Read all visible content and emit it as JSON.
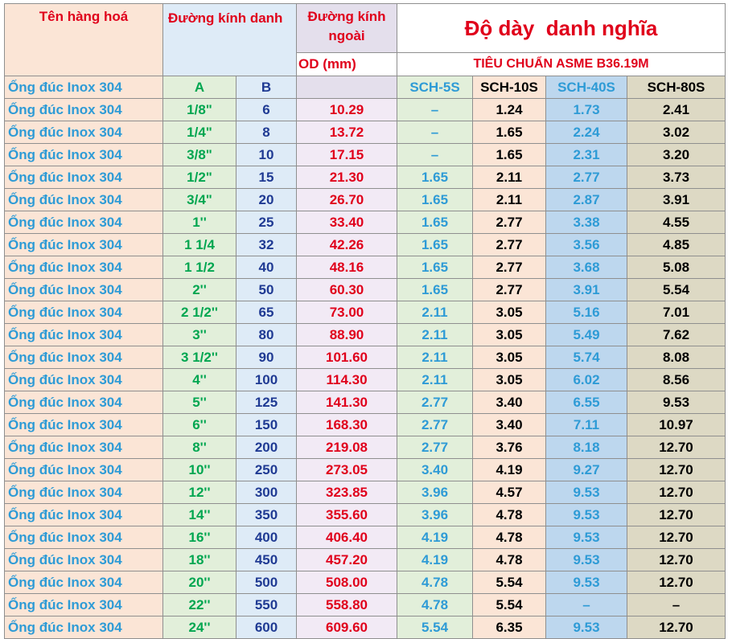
{
  "header": {
    "product_name": "Tên hàng hoá",
    "nominal_diameter": "Đường\nkính danh",
    "outer_diameter": "Đường kính\nngoài",
    "od_unit": "OD (mm)",
    "thickness_title": "Độ dày  danh nghĩa",
    "standard": "TIÊU CHUẨN ASME B36.19M"
  },
  "subheader": {
    "name": "Ống đúc Inox 304",
    "col_a": "A",
    "col_b": "B",
    "sch5": "SCH-5S",
    "sch10": "SCH-10S",
    "sch40": "SCH-40S",
    "sch80": "SCH-80S"
  },
  "rows": [
    {
      "name": "Ống đúc Inox 304",
      "a": "1/8\"",
      "b": "6",
      "od": "10.29",
      "sch5": "–",
      "sch10": "1.24",
      "sch40": "1.73",
      "sch80": "2.41"
    },
    {
      "name": "Ống đúc Inox 304",
      "a": "1/4\"",
      "b": "8",
      "od": "13.72",
      "sch5": "–",
      "sch10": "1.65",
      "sch40": "2.24",
      "sch80": "3.02"
    },
    {
      "name": "Ống đúc Inox 304",
      "a": "3/8\"",
      "b": "10",
      "od": "17.15",
      "sch5": "–",
      "sch10": "1.65",
      "sch40": "2.31",
      "sch80": "3.20"
    },
    {
      "name": "Ống đúc Inox 304",
      "a": "1/2\"",
      "b": "15",
      "od": "21.30",
      "sch5": "1.65",
      "sch10": "2.11",
      "sch40": "2.77",
      "sch80": "3.73"
    },
    {
      "name": "Ống đúc Inox 304",
      "a": "3/4\"",
      "b": "20",
      "od": "26.70",
      "sch5": "1.65",
      "sch10": "2.11",
      "sch40": "2.87",
      "sch80": "3.91"
    },
    {
      "name": "Ống đúc Inox 304",
      "a": "1''",
      "b": "25",
      "od": "33.40",
      "sch5": "1.65",
      "sch10": "2.77",
      "sch40": "3.38",
      "sch80": "4.55"
    },
    {
      "name": "Ống đúc Inox 304",
      "a": "1 1/4",
      "b": "32",
      "od": "42.26",
      "sch5": "1.65",
      "sch10": "2.77",
      "sch40": "3.56",
      "sch80": "4.85"
    },
    {
      "name": "Ống đúc Inox 304",
      "a": "1 1/2",
      "b": "40",
      "od": "48.16",
      "sch5": "1.65",
      "sch10": "2.77",
      "sch40": "3.68",
      "sch80": "5.08"
    },
    {
      "name": "Ống đúc Inox 304",
      "a": "2''",
      "b": "50",
      "od": "60.30",
      "sch5": "1.65",
      "sch10": "2.77",
      "sch40": "3.91",
      "sch80": "5.54"
    },
    {
      "name": "Ống đúc Inox 304",
      "a": "2 1/2''",
      "b": "65",
      "od": "73.00",
      "sch5": "2.11",
      "sch10": "3.05",
      "sch40": "5.16",
      "sch80": "7.01"
    },
    {
      "name": "Ống đúc Inox 304",
      "a": "3''",
      "b": "80",
      "od": "88.90",
      "sch5": "2.11",
      "sch10": "3.05",
      "sch40": "5.49",
      "sch80": "7.62"
    },
    {
      "name": "Ống đúc Inox 304",
      "a": "3 1/2''",
      "b": "90",
      "od": "101.60",
      "sch5": "2.11",
      "sch10": "3.05",
      "sch40": "5.74",
      "sch80": "8.08"
    },
    {
      "name": "Ống đúc Inox 304",
      "a": "4''",
      "b": "100",
      "od": "114.30",
      "sch5": "2.11",
      "sch10": "3.05",
      "sch40": "6.02",
      "sch80": "8.56"
    },
    {
      "name": "Ống đúc Inox 304",
      "a": "5''",
      "b": "125",
      "od": "141.30",
      "sch5": "2.77",
      "sch10": "3.40",
      "sch40": "6.55",
      "sch80": "9.53"
    },
    {
      "name": "Ống đúc Inox 304",
      "a": "6''",
      "b": "150",
      "od": "168.30",
      "sch5": "2.77",
      "sch10": "3.40",
      "sch40": "7.11",
      "sch80": "10.97"
    },
    {
      "name": "Ống đúc Inox 304",
      "a": "8''",
      "b": "200",
      "od": "219.08",
      "sch5": "2.77",
      "sch10": "3.76",
      "sch40": "8.18",
      "sch80": "12.70"
    },
    {
      "name": "Ống đúc Inox 304",
      "a": "10''",
      "b": "250",
      "od": "273.05",
      "sch5": "3.40",
      "sch10": "4.19",
      "sch40": "9.27",
      "sch80": "12.70"
    },
    {
      "name": "Ống đúc Inox 304",
      "a": "12''",
      "b": "300",
      "od": "323.85",
      "sch5": "3.96",
      "sch10": "4.57",
      "sch40": "9.53",
      "sch80": "12.70"
    },
    {
      "name": "Ống đúc Inox 304",
      "a": "14''",
      "b": "350",
      "od": "355.60",
      "sch5": "3.96",
      "sch10": "4.78",
      "sch40": "9.53",
      "sch80": "12.70"
    },
    {
      "name": "Ống đúc Inox 304",
      "a": "16''",
      "b": "400",
      "od": "406.40",
      "sch5": "4.19",
      "sch10": "4.78",
      "sch40": "9.53",
      "sch80": "12.70"
    },
    {
      "name": "Ống đúc Inox 304",
      "a": "18''",
      "b": "450",
      "od": "457.20",
      "sch5": "4.19",
      "sch10": "4.78",
      "sch40": "9.53",
      "sch80": "12.70"
    },
    {
      "name": "Ống đúc Inox 304",
      "a": "20''",
      "b": "500",
      "od": "508.00",
      "sch5": "4.78",
      "sch10": "5.54",
      "sch40": "9.53",
      "sch80": "12.70"
    },
    {
      "name": "Ống đúc Inox 304",
      "a": "22''",
      "b": "550",
      "od": "558.80",
      "sch5": "4.78",
      "sch10": "5.54",
      "sch40": "–",
      "sch80": "–"
    },
    {
      "name": "Ống đúc Inox 304",
      "a": "24''",
      "b": "600",
      "od": "609.60",
      "sch5": "5.54",
      "sch10": "6.35",
      "sch40": "9.53",
      "sch80": "12.70"
    }
  ]
}
